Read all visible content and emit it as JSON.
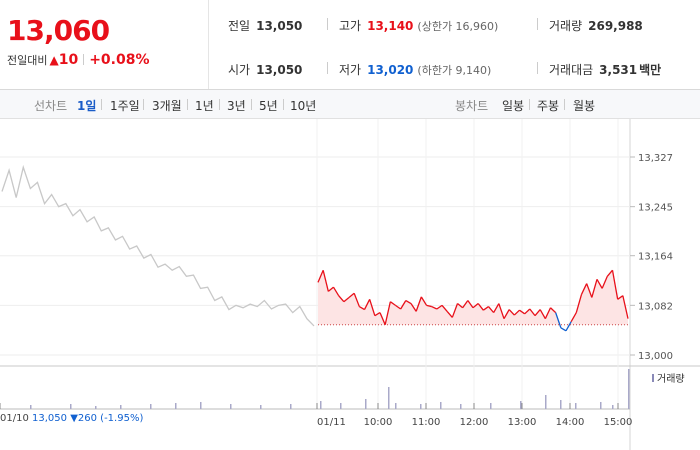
{
  "quote": {
    "price": "13,060",
    "change_label": "전일대비",
    "change_value": "10",
    "change_rate": "+0.08%",
    "prev_close": {
      "label": "전일",
      "value": "13,050"
    },
    "open": {
      "label": "시가",
      "value": "13,050"
    },
    "high": {
      "label": "고가",
      "value": "13,140",
      "sub": "(상한가 16,960)"
    },
    "low": {
      "label": "저가",
      "value": "13,020",
      "sub": "(하한가 9,140)"
    },
    "volume": {
      "label": "거래량",
      "value": "269,988"
    },
    "amount": {
      "label": "거래대금",
      "value": "3,531",
      "unit": "백만"
    }
  },
  "toolbar": {
    "line_label": "선차트",
    "periods": [
      "1일",
      "1주일",
      "3개월",
      "1년",
      "3년",
      "5년",
      "10년"
    ],
    "selected_period": "1일",
    "candle_label": "봉차트",
    "candles": [
      "일봉",
      "주봉",
      "월봉"
    ]
  },
  "footer": {
    "prev_date": "01/10",
    "prev_close": "13,050",
    "prev_change": "▼260",
    "prev_rate": "(-1.95%)"
  },
  "colors": {
    "up": "#e8101a",
    "down": "#1060d0",
    "prev_line": "#c8c8c8",
    "fill": "#fde4e4"
  },
  "chart_data": {
    "type": "line",
    "y_ticks": [
      13327,
      13245,
      13164,
      13082,
      13000
    ],
    "ylim": [
      13000,
      13327
    ],
    "x_tick_labels": [
      "01/11",
      "10:00",
      "11:00",
      "12:00",
      "13:00",
      "14:00",
      "15:00"
    ],
    "baseline": 13050,
    "volume_legend": "거래량",
    "series": [
      {
        "values": [
          13270,
          13305,
          13260,
          13310,
          13275,
          13285,
          13250,
          13265,
          13245,
          13250,
          13230,
          13240,
          13220,
          13228,
          13205,
          13210,
          13190,
          13196,
          13175,
          13180,
          13160,
          13166,
          13145,
          13150,
          13140,
          13146,
          13130,
          13132,
          13110,
          13112,
          13090,
          13096,
          13075,
          13082,
          13078,
          13084,
          13080,
          13090,
          13076,
          13082,
          13084,
          13070,
          13080,
          13060,
          13048
        ]
      },
      {
        "values": [
          13120,
          13140,
          13105,
          13112,
          13098,
          13088,
          13095,
          13102,
          13080,
          13075,
          13092,
          13065,
          13070,
          13050,
          13088,
          13082,
          13076,
          13090,
          13085,
          13072,
          13096,
          13082,
          13080,
          13076,
          13082,
          13072,
          13062,
          13085,
          13078,
          13090,
          13078,
          13085,
          13074,
          13080,
          13070,
          13085,
          13060,
          13075,
          13066,
          13074,
          13068,
          13076,
          13065,
          13075,
          13060,
          13078,
          13070,
          13045,
          13040,
          13055,
          13070,
          13100,
          13118,
          13095,
          13125,
          13110,
          13130,
          13140,
          13092,
          13098,
          13060
        ]
      }
    ]
  }
}
